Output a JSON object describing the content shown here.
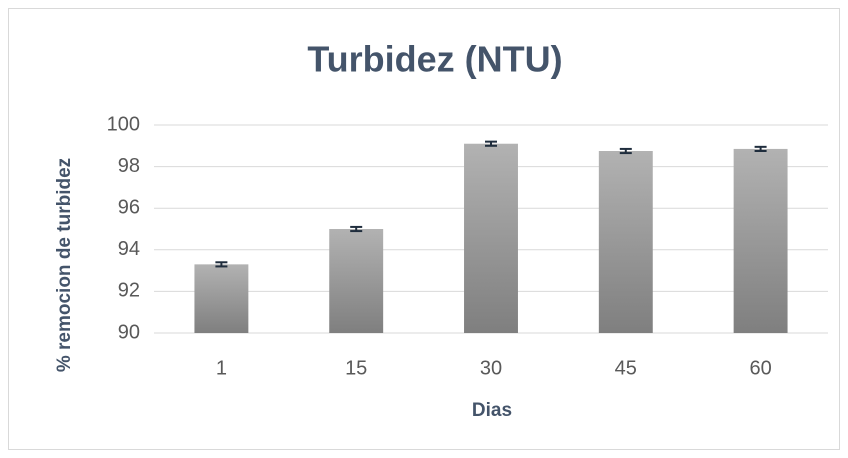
{
  "chart_data": {
    "type": "bar",
    "title": "Turbidez (NTU)",
    "x_label": "Dias",
    "y_label": "% remocion de turbidez",
    "categories": [
      "1",
      "15",
      "30",
      "45",
      "60"
    ],
    "values": [
      93.3,
      95.0,
      99.1,
      98.75,
      98.85
    ],
    "errors": [
      0.1,
      0.1,
      0.1,
      0.1,
      0.1
    ],
    "color": "#999999",
    "ylim": [
      90,
      100
    ],
    "yticks": [
      90,
      92,
      94,
      96,
      98,
      100
    ],
    "grid": true
  }
}
